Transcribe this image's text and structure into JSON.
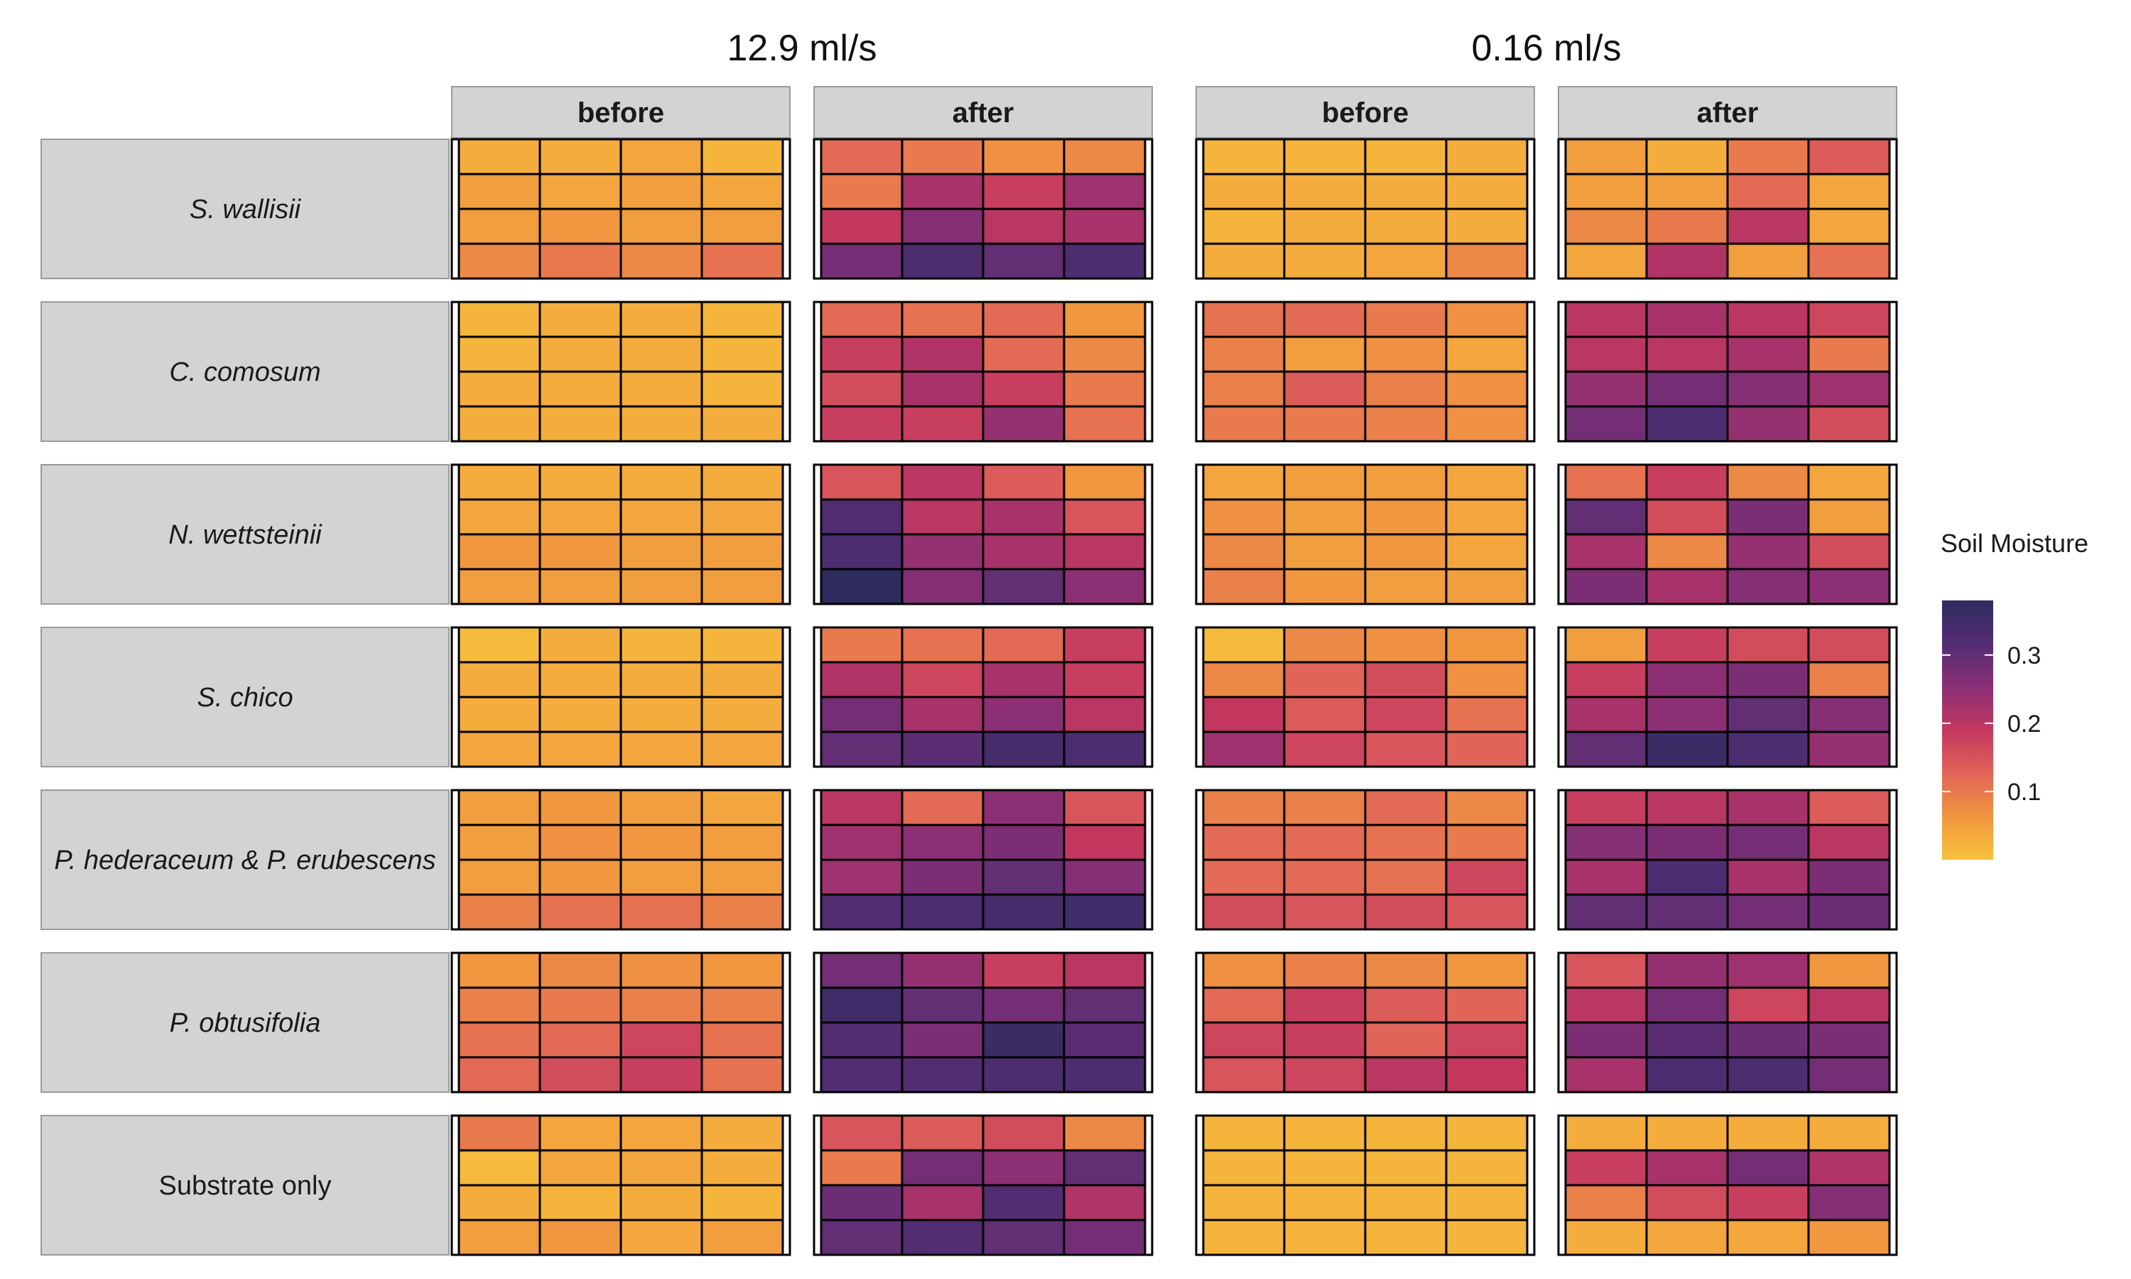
{
  "chart_data": {
    "type": "heatmap",
    "column_groups": [
      {
        "label": "12.9 ml/s",
        "columns": [
          "before",
          "after"
        ]
      },
      {
        "label": "0.16 ml/s",
        "columns": [
          "before",
          "after"
        ]
      }
    ],
    "rows": [
      {
        "label": "S. wallisii",
        "italic": true
      },
      {
        "label": "C. comosum",
        "italic": true
      },
      {
        "label": "N. wettsteinii",
        "italic": true
      },
      {
        "label": "S. chico",
        "italic": true
      },
      {
        "label": "P. hederaceum & P. erubescens",
        "italic": true
      },
      {
        "label": "P. obtusifolia",
        "italic": true
      },
      {
        "label": "Substrate only",
        "italic": false
      }
    ],
    "legend": {
      "title": "Soil Moisture",
      "range": [
        0.0,
        0.38
      ],
      "ticks": [
        0.1,
        0.2,
        0.3
      ],
      "tick_labels": [
        "0.1",
        "0.2",
        "0.3"
      ],
      "colors": [
        "#f7c23b",
        "#f0953f",
        "#e26658",
        "#c3375f",
        "#8a2f76",
        "#542d73",
        "#2e2b5e"
      ]
    },
    "grid_rows": 4,
    "grid_cols": 4,
    "values": [
      [
        [
          [
            0.03,
            0.03,
            0.04,
            0.02
          ],
          [
            0.05,
            0.04,
            0.05,
            0.04
          ],
          [
            0.05,
            0.06,
            0.05,
            0.05
          ],
          [
            0.08,
            0.1,
            0.08,
            0.11
          ]
        ],
        [
          [
            0.12,
            0.1,
            0.07,
            0.08
          ],
          [
            0.1,
            0.22,
            0.18,
            0.23
          ],
          [
            0.19,
            0.26,
            0.2,
            0.22
          ],
          [
            0.28,
            0.33,
            0.3,
            0.33
          ]
        ],
        [
          [
            0.02,
            0.02,
            0.02,
            0.03
          ],
          [
            0.03,
            0.03,
            0.03,
            0.03
          ],
          [
            0.02,
            0.03,
            0.03,
            0.03
          ],
          [
            0.03,
            0.03,
            0.04,
            0.08
          ]
        ],
        [
          [
            0.05,
            0.03,
            0.1,
            0.14
          ],
          [
            0.05,
            0.05,
            0.12,
            0.04
          ],
          [
            0.08,
            0.1,
            0.2,
            0.04
          ],
          [
            0.04,
            0.21,
            0.05,
            0.11
          ]
        ]
      ],
      [
        [
          [
            0.02,
            0.03,
            0.03,
            0.02
          ],
          [
            0.02,
            0.03,
            0.03,
            0.02
          ],
          [
            0.03,
            0.03,
            0.03,
            0.02
          ],
          [
            0.03,
            0.03,
            0.03,
            0.03
          ]
        ],
        [
          [
            0.12,
            0.11,
            0.12,
            0.06
          ],
          [
            0.18,
            0.21,
            0.12,
            0.08
          ],
          [
            0.16,
            0.22,
            0.18,
            0.1
          ],
          [
            0.18,
            0.18,
            0.24,
            0.11
          ]
        ],
        [
          [
            0.11,
            0.12,
            0.1,
            0.07
          ],
          [
            0.09,
            0.05,
            0.07,
            0.04
          ],
          [
            0.09,
            0.14,
            0.09,
            0.07
          ],
          [
            0.1,
            0.1,
            0.09,
            0.07
          ]
        ],
        [
          [
            0.2,
            0.22,
            0.2,
            0.17
          ],
          [
            0.2,
            0.2,
            0.22,
            0.1
          ],
          [
            0.24,
            0.28,
            0.26,
            0.23
          ],
          [
            0.28,
            0.33,
            0.24,
            0.16
          ]
        ]
      ],
      [
        [
          [
            0.03,
            0.03,
            0.03,
            0.03
          ],
          [
            0.04,
            0.04,
            0.04,
            0.04
          ],
          [
            0.06,
            0.06,
            0.05,
            0.05
          ],
          [
            0.05,
            0.05,
            0.05,
            0.05
          ]
        ],
        [
          [
            0.15,
            0.2,
            0.14,
            0.06
          ],
          [
            0.32,
            0.2,
            0.22,
            0.15
          ],
          [
            0.33,
            0.24,
            0.22,
            0.2
          ],
          [
            0.38,
            0.26,
            0.3,
            0.25
          ]
        ],
        [
          [
            0.04,
            0.05,
            0.05,
            0.04
          ],
          [
            0.07,
            0.05,
            0.06,
            0.04
          ],
          [
            0.08,
            0.05,
            0.06,
            0.04
          ],
          [
            0.09,
            0.06,
            0.05,
            0.05
          ]
        ],
        [
          [
            0.11,
            0.18,
            0.08,
            0.04
          ],
          [
            0.3,
            0.16,
            0.27,
            0.05
          ],
          [
            0.22,
            0.08,
            0.24,
            0.16
          ],
          [
            0.27,
            0.22,
            0.26,
            0.25
          ]
        ]
      ],
      [
        [
          [
            0.01,
            0.03,
            0.02,
            0.02
          ],
          [
            0.03,
            0.03,
            0.03,
            0.03
          ],
          [
            0.03,
            0.03,
            0.03,
            0.03
          ],
          [
            0.04,
            0.04,
            0.04,
            0.04
          ]
        ],
        [
          [
            0.1,
            0.11,
            0.12,
            0.18
          ],
          [
            0.21,
            0.17,
            0.22,
            0.18
          ],
          [
            0.28,
            0.22,
            0.25,
            0.2
          ],
          [
            0.3,
            0.31,
            0.34,
            0.33
          ]
        ],
        [
          [
            0.01,
            0.08,
            0.07,
            0.06
          ],
          [
            0.08,
            0.13,
            0.16,
            0.07
          ],
          [
            0.19,
            0.14,
            0.17,
            0.11
          ],
          [
            0.23,
            0.17,
            0.15,
            0.13
          ]
        ],
        [
          [
            0.05,
            0.18,
            0.16,
            0.16
          ],
          [
            0.18,
            0.25,
            0.27,
            0.09
          ],
          [
            0.22,
            0.25,
            0.3,
            0.26
          ],
          [
            0.3,
            0.36,
            0.33,
            0.24
          ]
        ]
      ],
      [
        [
          [
            0.05,
            0.06,
            0.05,
            0.04
          ],
          [
            0.05,
            0.07,
            0.06,
            0.05
          ],
          [
            0.05,
            0.06,
            0.05,
            0.05
          ],
          [
            0.09,
            0.11,
            0.11,
            0.09
          ]
        ],
        [
          [
            0.2,
            0.12,
            0.25,
            0.15
          ],
          [
            0.23,
            0.25,
            0.27,
            0.19
          ],
          [
            0.23,
            0.27,
            0.3,
            0.26
          ],
          [
            0.32,
            0.33,
            0.34,
            0.35
          ]
        ],
        [
          [
            0.09,
            0.09,
            0.12,
            0.08
          ],
          [
            0.12,
            0.12,
            0.11,
            0.1
          ],
          [
            0.12,
            0.12,
            0.11,
            0.17
          ],
          [
            0.16,
            0.15,
            0.16,
            0.15
          ]
        ],
        [
          [
            0.18,
            0.2,
            0.22,
            0.14
          ],
          [
            0.26,
            0.27,
            0.28,
            0.2
          ],
          [
            0.22,
            0.33,
            0.22,
            0.27
          ],
          [
            0.3,
            0.3,
            0.28,
            0.29
          ]
        ]
      ],
      [
        [
          [
            0.06,
            0.08,
            0.07,
            0.06
          ],
          [
            0.09,
            0.1,
            0.09,
            0.09
          ],
          [
            0.11,
            0.12,
            0.17,
            0.11
          ],
          [
            0.12,
            0.16,
            0.18,
            0.11
          ]
        ],
        [
          [
            0.28,
            0.24,
            0.18,
            0.2
          ],
          [
            0.35,
            0.3,
            0.28,
            0.3
          ],
          [
            0.32,
            0.27,
            0.36,
            0.31
          ],
          [
            0.32,
            0.32,
            0.33,
            0.33
          ]
        ],
        [
          [
            0.07,
            0.09,
            0.08,
            0.06
          ],
          [
            0.12,
            0.18,
            0.14,
            0.13
          ],
          [
            0.17,
            0.18,
            0.13,
            0.17
          ],
          [
            0.15,
            0.17,
            0.2,
            0.19
          ]
        ],
        [
          [
            0.15,
            0.24,
            0.23,
            0.06
          ],
          [
            0.2,
            0.28,
            0.17,
            0.2
          ],
          [
            0.27,
            0.31,
            0.29,
            0.27
          ],
          [
            0.22,
            0.33,
            0.33,
            0.28
          ]
        ]
      ],
      [
        [
          [
            0.1,
            0.04,
            0.04,
            0.03
          ],
          [
            0.01,
            0.04,
            0.04,
            0.03
          ],
          [
            0.03,
            0.02,
            0.03,
            0.02
          ],
          [
            0.05,
            0.06,
            0.04,
            0.05
          ]
        ],
        [
          [
            0.15,
            0.14,
            0.16,
            0.08
          ],
          [
            0.1,
            0.28,
            0.25,
            0.3
          ],
          [
            0.29,
            0.22,
            0.32,
            0.21
          ],
          [
            0.3,
            0.32,
            0.3,
            0.28
          ]
        ],
        [
          [
            0.02,
            0.02,
            0.02,
            0.02
          ],
          [
            0.02,
            0.02,
            0.02,
            0.02
          ],
          [
            0.02,
            0.02,
            0.02,
            0.02
          ],
          [
            0.02,
            0.02,
            0.02,
            0.02
          ]
        ],
        [
          [
            0.03,
            0.03,
            0.03,
            0.03
          ],
          [
            0.18,
            0.22,
            0.28,
            0.21
          ],
          [
            0.09,
            0.16,
            0.18,
            0.26
          ],
          [
            0.03,
            0.04,
            0.04,
            0.06
          ]
        ]
      ]
    ]
  }
}
